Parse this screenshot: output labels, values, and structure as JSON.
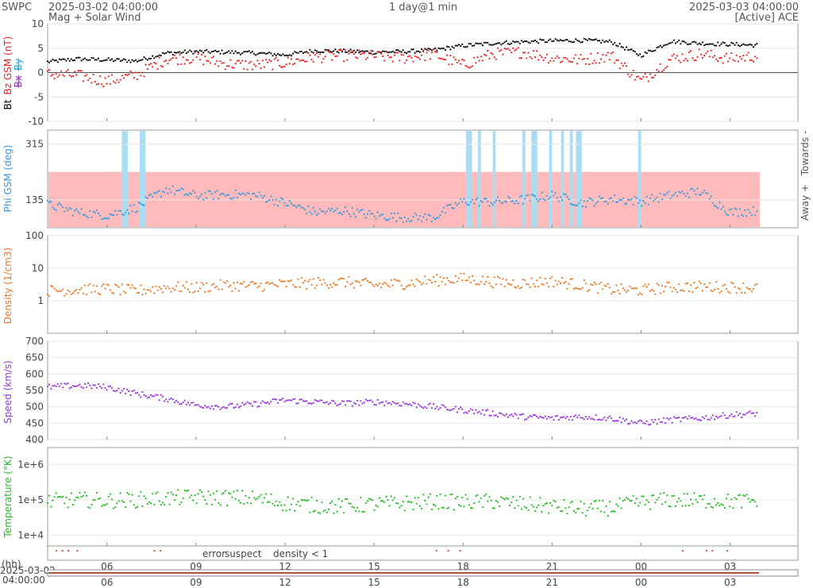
{
  "header": {
    "org": "SWPC",
    "start_time": "2025-03-02 04:00:00",
    "subtitle": "Mag + Solar Wind",
    "span": "1 day@1 min",
    "end_time": "2025-03-03 04:00:00",
    "source": "[Active] ACE"
  },
  "colors": {
    "bt": "#000000",
    "bz": "#ee2222",
    "bx": "#9933cc",
    "by": "#22aadd",
    "phi": "#3399dd",
    "phi_away_fill": "#ffbbbb",
    "phi_towards_fill": "#aaddf2",
    "density": "#ee7722",
    "speed": "#9933dd",
    "temperature": "#22bb22",
    "error": "#dd2222",
    "suspect": "#ddaa00",
    "density_low": "#ee7722",
    "axis": "#666666",
    "grid": "#e6e6e6",
    "timebar": "#aa5533"
  },
  "panels": {
    "mag": {
      "ylabel_parts": [
        "Bt",
        "Bz GSM (nT)",
        "Bx",
        "By"
      ],
      "ticks": [
        "10",
        "5",
        "0",
        "-5",
        "-10"
      ]
    },
    "phi": {
      "ylabel": "Phi GSM (deg)",
      "ticks": [
        "315",
        "135"
      ],
      "right_labels": [
        "Away +",
        "Towards -"
      ]
    },
    "density": {
      "ylabel": "Density (1/cm3)",
      "ticks": [
        "100",
        "10",
        "1"
      ]
    },
    "speed": {
      "ylabel": "Speed (km/s)",
      "ticks": [
        "700",
        "650",
        "600",
        "550",
        "500",
        "450",
        "400"
      ]
    },
    "temperature": {
      "ylabel": "Temperature (°K)",
      "ticks": [
        "1e+6",
        "1e+5",
        "1e+4"
      ]
    }
  },
  "legend": {
    "error": "error",
    "suspect": "suspect",
    "density_low": "density < 1"
  },
  "time_axis": {
    "unit_label": "(hh)",
    "tick_labels": [
      "06",
      "09",
      "12",
      "15",
      "18",
      "21",
      "00",
      "03"
    ],
    "nav_start_label_1": "2025-03-02",
    "nav_start_label_2": "04:00:00"
  },
  "chart_data": [
    {
      "type": "scatter",
      "title": "Mag",
      "ylabel": "Bt / Bz GSM (nT)",
      "ylim": [
        -10,
        10
      ],
      "x_hours_from_start": [
        0,
        1,
        2,
        3,
        4,
        5,
        6,
        7,
        8,
        9,
        10,
        11,
        12,
        13,
        14,
        15,
        16,
        17,
        18,
        19,
        20,
        21,
        22,
        23,
        24
      ],
      "series": [
        {
          "name": "Bt",
          "values": [
            2.2,
            2.8,
            2.6,
            2.4,
            4.0,
            4.3,
            4.2,
            4.0,
            3.6,
            4.5,
            4.4,
            4.2,
            4.3,
            4.6,
            5.5,
            6.0,
            6.3,
            6.5,
            6.6,
            6.3,
            3.5,
            6.4,
            6.0,
            5.8,
            5.6
          ]
        },
        {
          "name": "Bz GSM",
          "values": [
            -0.3,
            -0.6,
            -1.8,
            -0.5,
            2.8,
            3.0,
            1.8,
            1.5,
            2.0,
            3.2,
            3.5,
            3.4,
            3.0,
            3.8,
            1.5,
            3.8,
            4.2,
            3.0,
            2.6,
            3.5,
            -1.8,
            2.8,
            3.8,
            2.8,
            3.5
          ]
        }
      ],
      "grid": true
    },
    {
      "type": "scatter",
      "title": "Phi",
      "ylabel": "Phi GSM (deg)",
      "ylim": [
        45,
        360
      ],
      "x_hours_from_start": [
        0,
        1,
        2,
        3,
        4,
        5,
        6,
        7,
        8,
        9,
        10,
        11,
        12,
        13,
        14,
        15,
        16,
        17,
        18,
        19,
        20,
        21,
        22,
        23,
        24
      ],
      "series": [
        {
          "name": "Phi GSM",
          "values": [
            120,
            95,
            85,
            110,
            170,
            148,
            152,
            150,
            125,
            95,
            100,
            85,
            78,
            78,
            130,
            128,
            135,
            150,
            125,
            138,
            130,
            150,
            162,
            95,
            100
          ]
        }
      ],
      "grid": true
    },
    {
      "type": "scatter",
      "title": "Density",
      "ylabel": "Density (1/cm3)",
      "ylim": [
        0.1,
        100
      ],
      "log_scale": true,
      "x_hours_from_start": [
        0,
        1,
        2,
        3,
        4,
        5,
        6,
        7,
        8,
        9,
        10,
        11,
        12,
        13,
        14,
        15,
        16,
        17,
        18,
        19,
        20,
        21,
        22,
        23,
        24
      ],
      "series": [
        {
          "name": "Density",
          "values": [
            2.0,
            2.2,
            2.3,
            2.0,
            2.6,
            2.5,
            3.0,
            2.8,
            3.2,
            3.5,
            3.8,
            3.0,
            3.4,
            4.2,
            4.8,
            3.8,
            3.4,
            4.0,
            3.0,
            2.2,
            2.1,
            2.6,
            2.7,
            2.6,
            2.5
          ]
        }
      ],
      "grid": true
    },
    {
      "type": "scatter",
      "title": "Speed",
      "ylabel": "Speed (km/s)",
      "ylim": [
        400,
        700
      ],
      "x_hours_from_start": [
        0,
        1,
        2,
        3,
        4,
        5,
        6,
        7,
        8,
        9,
        10,
        11,
        12,
        13,
        14,
        15,
        16,
        17,
        18,
        19,
        20,
        21,
        22,
        23,
        24
      ],
      "series": [
        {
          "name": "Speed",
          "values": [
            560,
            565,
            560,
            540,
            525,
            505,
            500,
            508,
            520,
            515,
            510,
            515,
            510,
            500,
            490,
            480,
            470,
            465,
            470,
            465,
            450,
            460,
            465,
            475,
            480
          ]
        }
      ],
      "grid": true
    },
    {
      "type": "scatter",
      "title": "Temperature",
      "ylabel": "Temperature (°K)",
      "ylim": [
        5000,
        3000000
      ],
      "log_scale": true,
      "x_hours_from_start": [
        0,
        1,
        2,
        3,
        4,
        5,
        6,
        7,
        8,
        9,
        10,
        11,
        12,
        13,
        14,
        15,
        16,
        17,
        18,
        19,
        20,
        21,
        22,
        23,
        24
      ],
      "series": [
        {
          "name": "Temperature",
          "values": [
            90000,
            100000,
            95000,
            100000,
            110000,
            120000,
            115000,
            110000,
            80000,
            70000,
            65000,
            75000,
            80000,
            90000,
            85000,
            90000,
            75000,
            65000,
            55000,
            60000,
            85000,
            100000,
            95000,
            90000,
            95000
          ]
        }
      ],
      "grid": true
    }
  ]
}
